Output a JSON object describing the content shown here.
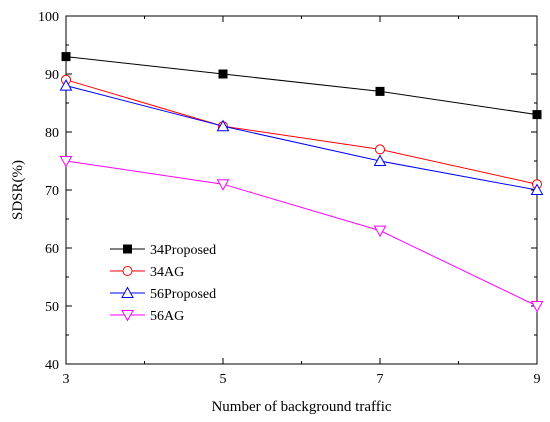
{
  "chart_data": {
    "type": "line",
    "title": "",
    "xlabel": "Number of background traffic",
    "ylabel": "SDSR(%)",
    "x": [
      3,
      5,
      7,
      9
    ],
    "xlim": [
      3,
      9
    ],
    "ylim": [
      40,
      100
    ],
    "xticks": [
      3,
      5,
      7,
      9
    ],
    "xticks_minor": [
      4,
      6,
      8
    ],
    "yticks": [
      40,
      50,
      60,
      70,
      80,
      90,
      100
    ],
    "grid": false,
    "legend_position": "bottom-left",
    "series": [
      {
        "name": "34Proposed",
        "values": [
          93,
          90,
          87,
          83
        ],
        "color": "#000000",
        "marker": "square-filled"
      },
      {
        "name": "34AG",
        "values": [
          89,
          81,
          77,
          71
        ],
        "color": "#ff0000",
        "marker": "circle-open"
      },
      {
        "name": "56Proposed",
        "values": [
          88,
          81,
          75,
          70
        ],
        "color": "#0000ff",
        "marker": "triangle-up-open"
      },
      {
        "name": "56AG",
        "values": [
          75,
          71,
          63,
          50
        ],
        "color": "#ff00ff",
        "marker": "triangle-down-open"
      }
    ]
  }
}
